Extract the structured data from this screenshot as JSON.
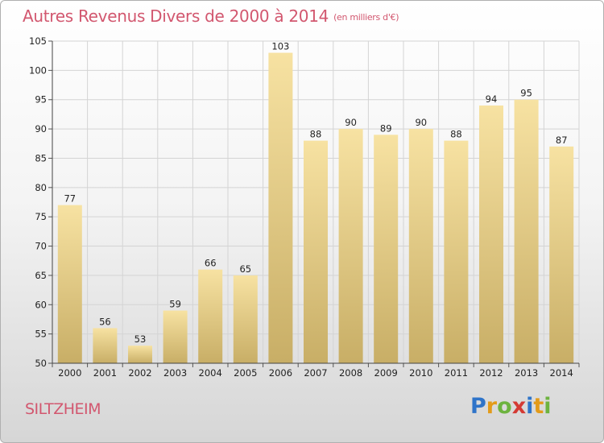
{
  "chart_data": {
    "type": "bar",
    "title": "Autres Revenus Divers de 2000 à 2014",
    "subtitle": "(en milliers d'€)",
    "xlabel": "",
    "ylabel": "",
    "categories": [
      "2000",
      "2001",
      "2002",
      "2003",
      "2004",
      "2005",
      "2006",
      "2007",
      "2008",
      "2009",
      "2010",
      "2011",
      "2012",
      "2013",
      "2014"
    ],
    "values": [
      77,
      56,
      53,
      59,
      66,
      65,
      103,
      88,
      90,
      89,
      90,
      88,
      94,
      95,
      87
    ],
    "ylim": [
      50,
      105
    ],
    "yticks": [
      50,
      55,
      60,
      65,
      70,
      75,
      80,
      85,
      90,
      95,
      100,
      105
    ],
    "grid": true,
    "bar_color_light": "#f7e2a2",
    "bar_color_dark": "#c8ae66",
    "grid_color": "#d4d4d4"
  },
  "location": "SILTZHEIM",
  "logo": {
    "letters": [
      "P",
      "r",
      "o",
      "x",
      "i",
      "t",
      "i"
    ],
    "colors": [
      "#2f74c9",
      "#e39b1a",
      "#6db33f",
      "#d43a34",
      "#2f74c9",
      "#e39b1a",
      "#6db33f"
    ]
  },
  "colors": {
    "title": "#d2576f"
  }
}
